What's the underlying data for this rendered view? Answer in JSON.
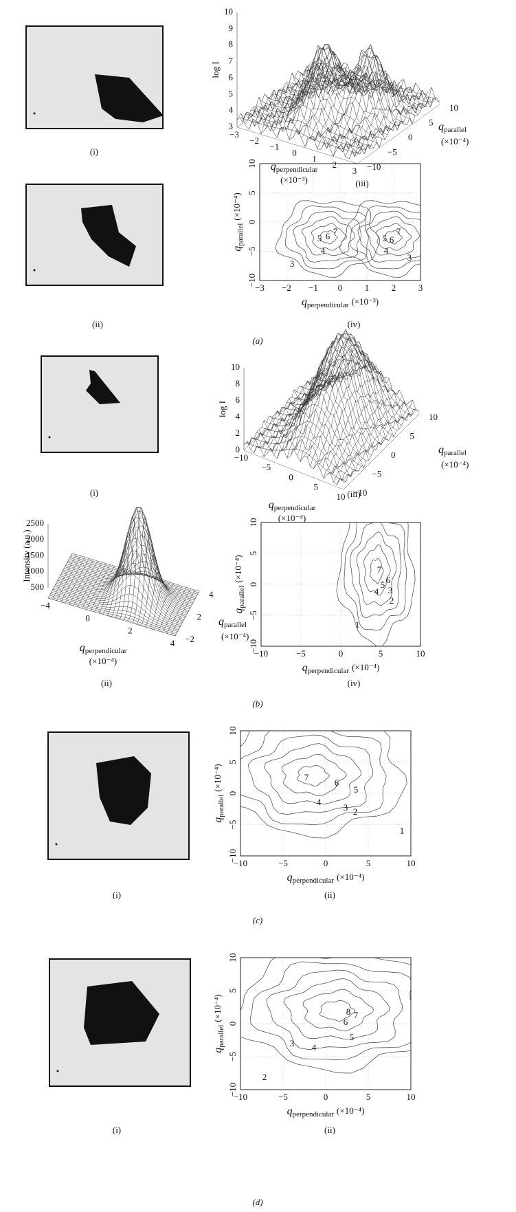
{
  "panels": [
    {
      "label": "(a)",
      "subpanels": [
        {
          "kind": "image",
          "label": "(i)"
        },
        {
          "kind": "surface",
          "label": "(iii)",
          "z_label": "log I",
          "z_ticks": [
            "3",
            "4",
            "5",
            "6",
            "7",
            "8",
            "9",
            "10"
          ],
          "x_label": {
            "symbol": "q",
            "subscript": "perpendicular",
            "unit": "(×10⁻³)"
          },
          "x_ticks": [
            "−3",
            "−2",
            "−1",
            "0",
            "1",
            "2",
            "3"
          ],
          "y_label": {
            "symbol": "q",
            "subscript": "parallel",
            "unit": "(×10⁻⁴)"
          },
          "y_ticks": [
            "−10",
            "−5",
            "0",
            "5",
            "10"
          ]
        },
        {
          "kind": "image",
          "label": "(ii)"
        },
        {
          "kind": "contour",
          "label": "(iv)",
          "x_label": {
            "symbol": "q",
            "subscript": "perpendicular",
            "unit": "(×10⁻³)"
          },
          "x_ticks": [
            "−3",
            "−2",
            "−1",
            "0",
            "1",
            "2",
            "3"
          ],
          "y_label": {
            "symbol": "q",
            "subscript": "parallel",
            "unit": "(×10⁻⁴)"
          },
          "y_ticks": [
            "10",
            "5",
            "0",
            "−5",
            "−10"
          ],
          "contour_labels": [
            "5",
            "6",
            "7",
            "4",
            "3",
            "5",
            "6",
            "7",
            "4",
            "3"
          ]
        }
      ]
    },
    {
      "label": "(b)",
      "subpanels": [
        {
          "kind": "image",
          "label": "(i)"
        },
        {
          "kind": "surface",
          "label": "(iii)",
          "z_label": "log I",
          "z_ticks": [
            "0",
            "2",
            "4",
            "6",
            "8",
            "10"
          ],
          "x_label": {
            "symbol": "q",
            "subscript": "perpendicular",
            "unit": "(×10⁻⁴)"
          },
          "x_ticks": [
            "−10",
            "−5",
            "0",
            "5",
            "10"
          ],
          "y_label": {
            "symbol": "q",
            "subscript": "parallel",
            "unit": "(×10⁻⁴)"
          },
          "y_ticks": [
            "−10",
            "−5",
            "0",
            "5",
            "10"
          ]
        },
        {
          "kind": "surface",
          "label": "(ii)",
          "z_label": "Intensity (a.u.)",
          "z_ticks": [
            "500",
            "1000",
            "1500",
            "2000",
            "2500"
          ],
          "x_label": {
            "symbol": "q",
            "subscript": "perpendicular",
            "unit": "(×10⁻⁴)"
          },
          "x_ticks": [
            "−4",
            "0",
            "2",
            "4"
          ],
          "y_label": {
            "symbol": "q",
            "subscript": "parallel",
            "unit": "(×10⁻⁴)"
          },
          "y_ticks": [
            "−2",
            "2",
            "4"
          ]
        },
        {
          "kind": "contour",
          "label": "(iv)",
          "x_label": {
            "symbol": "q",
            "subscript": "perpendicular",
            "unit": "(×10⁻⁴)"
          },
          "x_ticks": [
            "−10",
            "−5",
            "0",
            "5",
            "10"
          ],
          "y_label": {
            "symbol": "q",
            "subscript": "parallel",
            "unit": "(×10⁻⁴)"
          },
          "y_ticks": [
            "10",
            "5",
            "0",
            "−5",
            "−10"
          ],
          "contour_labels": [
            "7",
            "6",
            "5",
            "3",
            "4",
            "2",
            "1"
          ]
        }
      ]
    },
    {
      "label": "(c)",
      "subpanels": [
        {
          "kind": "image",
          "label": "(i)"
        },
        {
          "kind": "contour",
          "label": "(ii)",
          "x_label": {
            "symbol": "q",
            "subscript": "perpendicular",
            "unit": "(×10⁻⁴)"
          },
          "x_ticks": [
            "−10",
            "−5",
            "0",
            "5",
            "10"
          ],
          "y_label": {
            "symbol": "q",
            "subscript": "parallel",
            "unit": "(×10⁻⁴)"
          },
          "y_ticks": [
            "10",
            "5",
            "0",
            "−5",
            "−10"
          ],
          "contour_labels": [
            "7",
            "6",
            "5",
            "4",
            "3",
            "2",
            "1"
          ]
        }
      ]
    },
    {
      "label": "(d)",
      "subpanels": [
        {
          "kind": "image",
          "label": "(i)"
        },
        {
          "kind": "contour",
          "label": "(ii)",
          "x_label": {
            "symbol": "q",
            "subscript": "perpendicular",
            "unit": "(×10⁻⁴)"
          },
          "x_ticks": [
            "−10",
            "−5",
            "0",
            "5",
            "10"
          ],
          "y_label": {
            "symbol": "q",
            "subscript": "parallel",
            "unit": "(×10⁻⁴)"
          },
          "y_ticks": [
            "10",
            "5",
            "0",
            "−5",
            "−10"
          ],
          "contour_labels": [
            "8",
            "7",
            "6",
            "5",
            "4",
            "3",
            "2"
          ]
        }
      ]
    }
  ]
}
